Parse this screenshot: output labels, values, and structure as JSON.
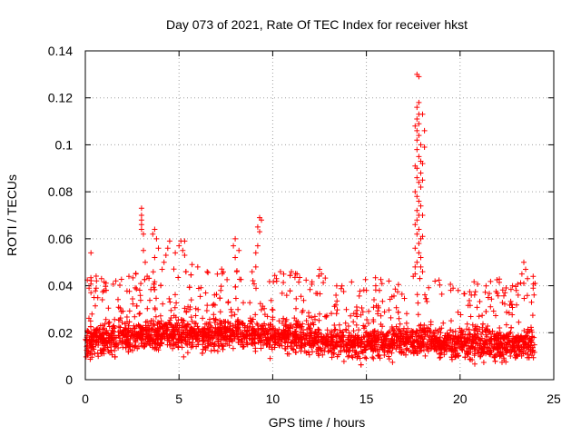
{
  "chart_data": {
    "type": "scatter",
    "title": "Day 073 of 2021, Rate Of TEC Index for receiver hkst",
    "xlabel": "GPS time / hours",
    "ylabel": "ROTI / TECUs",
    "xlim": [
      0,
      25
    ],
    "ylim": [
      0,
      0.14
    ],
    "x_ticks": [
      0,
      5,
      10,
      15,
      20,
      25
    ],
    "x_tick_labels": [
      "0",
      "5",
      "10",
      "15",
      "20",
      "25"
    ],
    "y_ticks": [
      0,
      0.02,
      0.04,
      0.06,
      0.08,
      0.1,
      0.12,
      0.14
    ],
    "y_tick_labels": [
      "0",
      "0.02",
      "0.04",
      "0.06",
      "0.08",
      "0.1",
      "0.12",
      "0.14"
    ],
    "grid": true,
    "marker": "+",
    "color": "#ff0000",
    "series": [
      {
        "name": "ROTI",
        "baseline": [
          [
            0.0,
            0.016
          ],
          [
            1.0,
            0.017
          ],
          [
            2.0,
            0.018
          ],
          [
            3.0,
            0.019
          ],
          [
            4.0,
            0.02
          ],
          [
            5.0,
            0.019
          ],
          [
            6.0,
            0.019
          ],
          [
            7.0,
            0.019
          ],
          [
            8.0,
            0.02
          ],
          [
            9.0,
            0.02
          ],
          [
            10.0,
            0.019
          ],
          [
            11.0,
            0.018
          ],
          [
            12.0,
            0.018
          ],
          [
            13.0,
            0.016
          ],
          [
            14.0,
            0.016
          ],
          [
            15.0,
            0.016
          ],
          [
            16.0,
            0.016
          ],
          [
            17.0,
            0.017
          ],
          [
            18.0,
            0.017
          ],
          [
            19.0,
            0.015
          ],
          [
            20.0,
            0.015
          ],
          [
            21.0,
            0.015
          ],
          [
            22.0,
            0.015
          ],
          [
            23.0,
            0.015
          ],
          [
            24.0,
            0.015
          ]
        ],
        "sample_count": 3000,
        "x_range": [
          0,
          24
        ],
        "spikes": [
          [
            0.3,
            0.054
          ],
          [
            0.2,
            0.039
          ],
          [
            0.3,
            0.037
          ],
          [
            3.0,
            0.073
          ],
          [
            3.0,
            0.07
          ],
          [
            3.0,
            0.068
          ],
          [
            3.0,
            0.066
          ],
          [
            3.0,
            0.064
          ],
          [
            3.1,
            0.062
          ],
          [
            2.7,
            0.045
          ],
          [
            3.1,
            0.055
          ],
          [
            3.2,
            0.05
          ],
          [
            3.7,
            0.064
          ],
          [
            3.6,
            0.062
          ],
          [
            3.8,
            0.06
          ],
          [
            3.9,
            0.056
          ],
          [
            3.7,
            0.052
          ],
          [
            4.1,
            0.047
          ],
          [
            4.3,
            0.053
          ],
          [
            4.4,
            0.056
          ],
          [
            4.5,
            0.059
          ],
          [
            4.2,
            0.05
          ],
          [
            4.8,
            0.054
          ],
          [
            5.1,
            0.059
          ],
          [
            5.3,
            0.059
          ],
          [
            5.0,
            0.057
          ],
          [
            5.2,
            0.055
          ],
          [
            5.3,
            0.053
          ],
          [
            5.7,
            0.049
          ],
          [
            6.0,
            0.048
          ],
          [
            6.5,
            0.046
          ],
          [
            8.0,
            0.06
          ],
          [
            7.9,
            0.057
          ],
          [
            8.2,
            0.055
          ],
          [
            8.0,
            0.052
          ],
          [
            9.3,
            0.069
          ],
          [
            9.4,
            0.068
          ],
          [
            9.2,
            0.065
          ],
          [
            9.3,
            0.063
          ],
          [
            9.2,
            0.057
          ],
          [
            9.1,
            0.054
          ],
          [
            9.1,
            0.048
          ],
          [
            8.9,
            0.046
          ],
          [
            10.2,
            0.043
          ],
          [
            11.0,
            0.046
          ],
          [
            11.3,
            0.045
          ],
          [
            12.5,
            0.047
          ],
          [
            12.6,
            0.045
          ],
          [
            15.0,
            0.038
          ],
          [
            15.5,
            0.04
          ],
          [
            16.2,
            0.042
          ],
          [
            15.7,
            0.038
          ],
          [
            17.6,
            0.048
          ],
          [
            17.6,
            0.045
          ],
          [
            17.7,
            0.13
          ],
          [
            17.8,
            0.129
          ],
          [
            17.8,
            0.118
          ],
          [
            17.7,
            0.116
          ],
          [
            17.8,
            0.113
          ],
          [
            17.7,
            0.111
          ],
          [
            17.8,
            0.109
          ],
          [
            17.6,
            0.108
          ],
          [
            17.7,
            0.106
          ],
          [
            17.8,
            0.104
          ],
          [
            17.7,
            0.102
          ],
          [
            17.9,
            0.1
          ],
          [
            17.7,
            0.098
          ],
          [
            17.8,
            0.095
          ],
          [
            17.9,
            0.093
          ],
          [
            17.6,
            0.091
          ],
          [
            17.7,
            0.09
          ],
          [
            17.9,
            0.088
          ],
          [
            17.7,
            0.086
          ],
          [
            17.8,
            0.084
          ],
          [
            17.9,
            0.082
          ],
          [
            17.6,
            0.08
          ],
          [
            17.7,
            0.078
          ],
          [
            17.8,
            0.076
          ],
          [
            17.9,
            0.074
          ],
          [
            17.7,
            0.072
          ],
          [
            17.8,
            0.07
          ],
          [
            17.7,
            0.068
          ],
          [
            17.6,
            0.066
          ],
          [
            17.8,
            0.064
          ],
          [
            17.7,
            0.062
          ],
          [
            17.9,
            0.06
          ],
          [
            17.8,
            0.058
          ],
          [
            17.6,
            0.056
          ],
          [
            17.8,
            0.054
          ],
          [
            17.9,
            0.052
          ],
          [
            17.7,
            0.05
          ],
          [
            17.9,
            0.048
          ],
          [
            18.0,
            0.046
          ],
          [
            17.5,
            0.044
          ],
          [
            18.0,
            0.113
          ],
          [
            18.0,
            0.092
          ],
          [
            18.1,
            0.099
          ],
          [
            18.1,
            0.106
          ],
          [
            18.0,
            0.085
          ],
          [
            18.0,
            0.07
          ],
          [
            18.0,
            0.061
          ],
          [
            19.9,
            0.038
          ],
          [
            20.6,
            0.036
          ],
          [
            21.5,
            0.035
          ],
          [
            22.4,
            0.037
          ],
          [
            22.8,
            0.04
          ],
          [
            23.0,
            0.038
          ],
          [
            23.1,
            0.036
          ],
          [
            23.4,
            0.05
          ],
          [
            23.5,
            0.047
          ],
          [
            23.3,
            0.045
          ],
          [
            23.6,
            0.043
          ],
          [
            23.4,
            0.041
          ],
          [
            23.9,
            0.044
          ],
          [
            24.0,
            0.041
          ],
          [
            23.9,
            0.039
          ]
        ]
      }
    ]
  }
}
